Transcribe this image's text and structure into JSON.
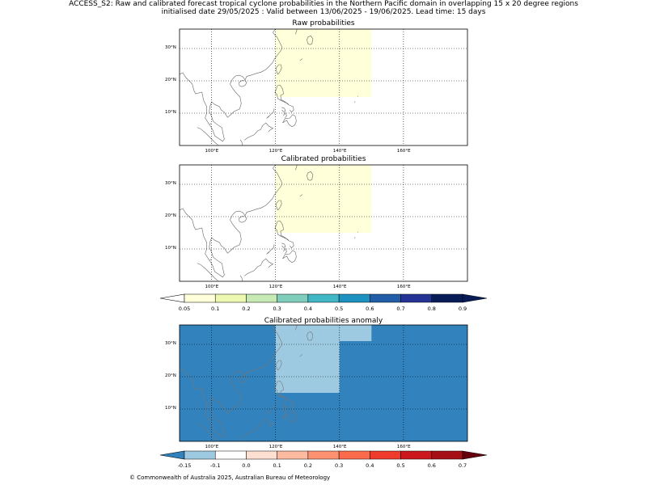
{
  "title_line1": "ACCESS_S2: Raw and calibrated forecast tropical cyclone probabilities in the Northern Pacific domain in overlapping 15 x 20 degree regions",
  "title_line2": "initialised date 29/05/2025 :  Valid between 13/06/2025 - 19/06/2025. Lead time: 15 days",
  "panels": [
    {
      "title": "Raw probabilities"
    },
    {
      "title": "Calibrated probabilities"
    },
    {
      "title": "Calibrated probabilities anomaly"
    }
  ],
  "lon_ticks": [
    "100°E",
    "120°E",
    "140°E",
    "160°E"
  ],
  "lat_ticks": [
    "30°N",
    "20°N",
    "10°N"
  ],
  "colorbar_prob": {
    "ticks": [
      "0.05",
      "0.1",
      "0.2",
      "0.3",
      "0.4",
      "0.5",
      "0.6",
      "0.7",
      "0.8",
      "0.9"
    ],
    "colors": [
      "#ffffd9",
      "#edf8b1",
      "#c7e9b4",
      "#7fcdbb",
      "#41b6c4",
      "#1d91c0",
      "#225ea8",
      "#253494",
      "#081d58"
    ],
    "under_color": "#ffffff",
    "over_color": "#081d58"
  },
  "colorbar_anom": {
    "ticks": [
      "-0.15",
      "-0.1",
      "0.0",
      "0.1",
      "0.2",
      "0.3",
      "0.4",
      "0.5",
      "0.6",
      "0.7"
    ],
    "colors": [
      "#9ecae1",
      "#ffffff",
      "#fee0d2",
      "#fcbba1",
      "#fc9272",
      "#fb6a4a",
      "#ef3b2c",
      "#cb181d",
      "#a50f15"
    ],
    "under_color": "#3182bd",
    "over_color": "#67000d"
  },
  "map_colors": {
    "prob_fill": "#ffffd9",
    "anom_base": "#3182bd",
    "anom_light": "#9ecae1",
    "coast": "#666666",
    "coast_on_anom": "#777777"
  },
  "credit": "© Commonwealth of Australia 2025, Australian Bureau of Meteorology"
}
